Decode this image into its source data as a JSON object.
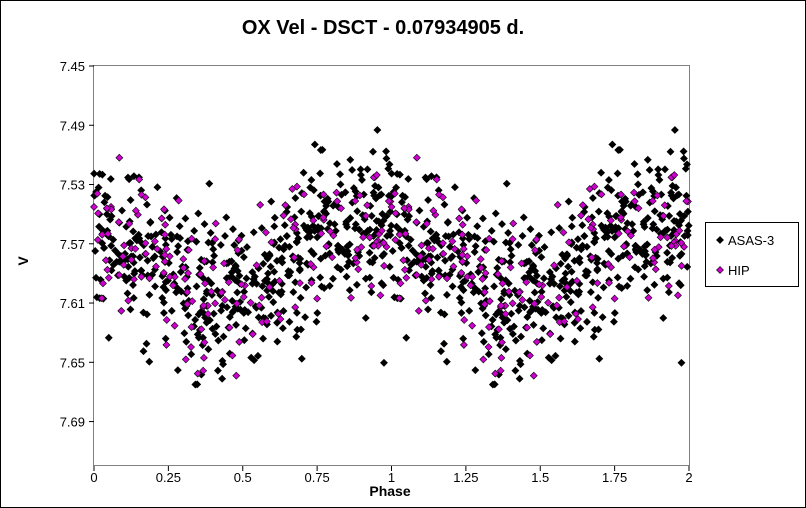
{
  "chart_data": {
    "type": "scatter",
    "title": "OX Vel - DSCT - 0.07934905 d.",
    "xlabel": "Phase",
    "ylabel": "V",
    "xlim": [
      0,
      2
    ],
    "ylim": [
      7.45,
      7.72
    ],
    "y_inverted": true,
    "grid": false,
    "legend_position": "right",
    "x_ticks": [
      "0",
      "0.25",
      "0.5",
      "0.75",
      "1",
      "1.25",
      "1.5",
      "1.75",
      "2"
    ],
    "y_ticks": [
      "7.45",
      "7.49",
      "7.53",
      "7.57",
      "7.61",
      "7.65",
      "7.69"
    ],
    "model": {
      "mean_mag": 7.58,
      "amplitude": 0.025,
      "asas_scatter": 0.025,
      "hip_scatter": 0.028,
      "peak_phase": 0.92
    },
    "series": [
      {
        "name": "ASAS-3",
        "color": "#000000",
        "marker": "diamond",
        "count": 520,
        "seed": 7
      },
      {
        "name": "HIP",
        "color": "#cc00cc",
        "marker": "diamond",
        "count": 170,
        "seed": 19
      }
    ]
  }
}
